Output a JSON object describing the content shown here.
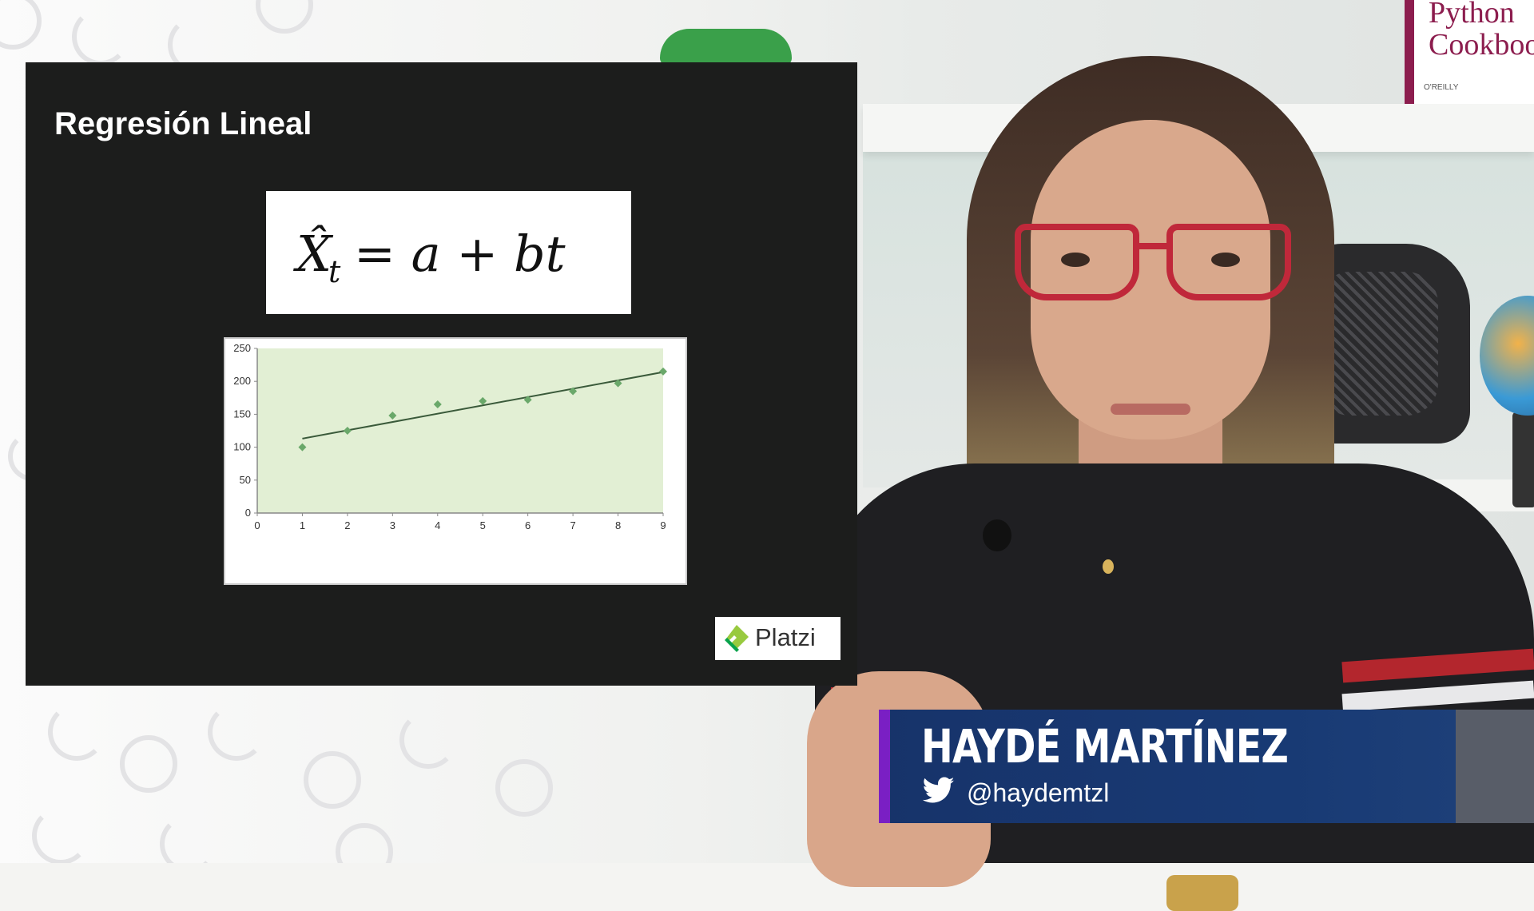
{
  "slide": {
    "title": "Regresión Lineal",
    "formula": {
      "lhs": "X̂",
      "subscript": "t",
      "rhs": "= a + bt"
    },
    "logo_text": "Platzi"
  },
  "chart_data": {
    "type": "scatter",
    "x": [
      1,
      2,
      3,
      4,
      5,
      6,
      7,
      8,
      9
    ],
    "y": [
      100,
      125,
      148,
      165,
      170,
      172,
      185,
      197,
      215
    ],
    "trendline": {
      "x": [
        1,
        9
      ],
      "y": [
        113,
        214
      ]
    },
    "xlim": [
      0,
      9
    ],
    "ylim": [
      0,
      250
    ],
    "x_ticks": [
      "0",
      "1",
      "2",
      "3",
      "4",
      "5",
      "6",
      "7",
      "8",
      "9"
    ],
    "y_ticks": [
      "0",
      "50",
      "100",
      "150",
      "200",
      "250"
    ],
    "grid": false,
    "colors": {
      "plot_bg": "#e2efd4",
      "points": "#6aa86a",
      "line": "#3a5a3a"
    }
  },
  "lower_third": {
    "name": "HAYDÉ MARTÍNEZ",
    "handle": "@haydemtzl",
    "icon": "twitter-bird-icon",
    "accent_color": "#7a1fc4",
    "bg_color": "#17336a"
  },
  "background": {
    "book_title": "Python Cookbook",
    "book_publisher": "O'REILLY"
  }
}
